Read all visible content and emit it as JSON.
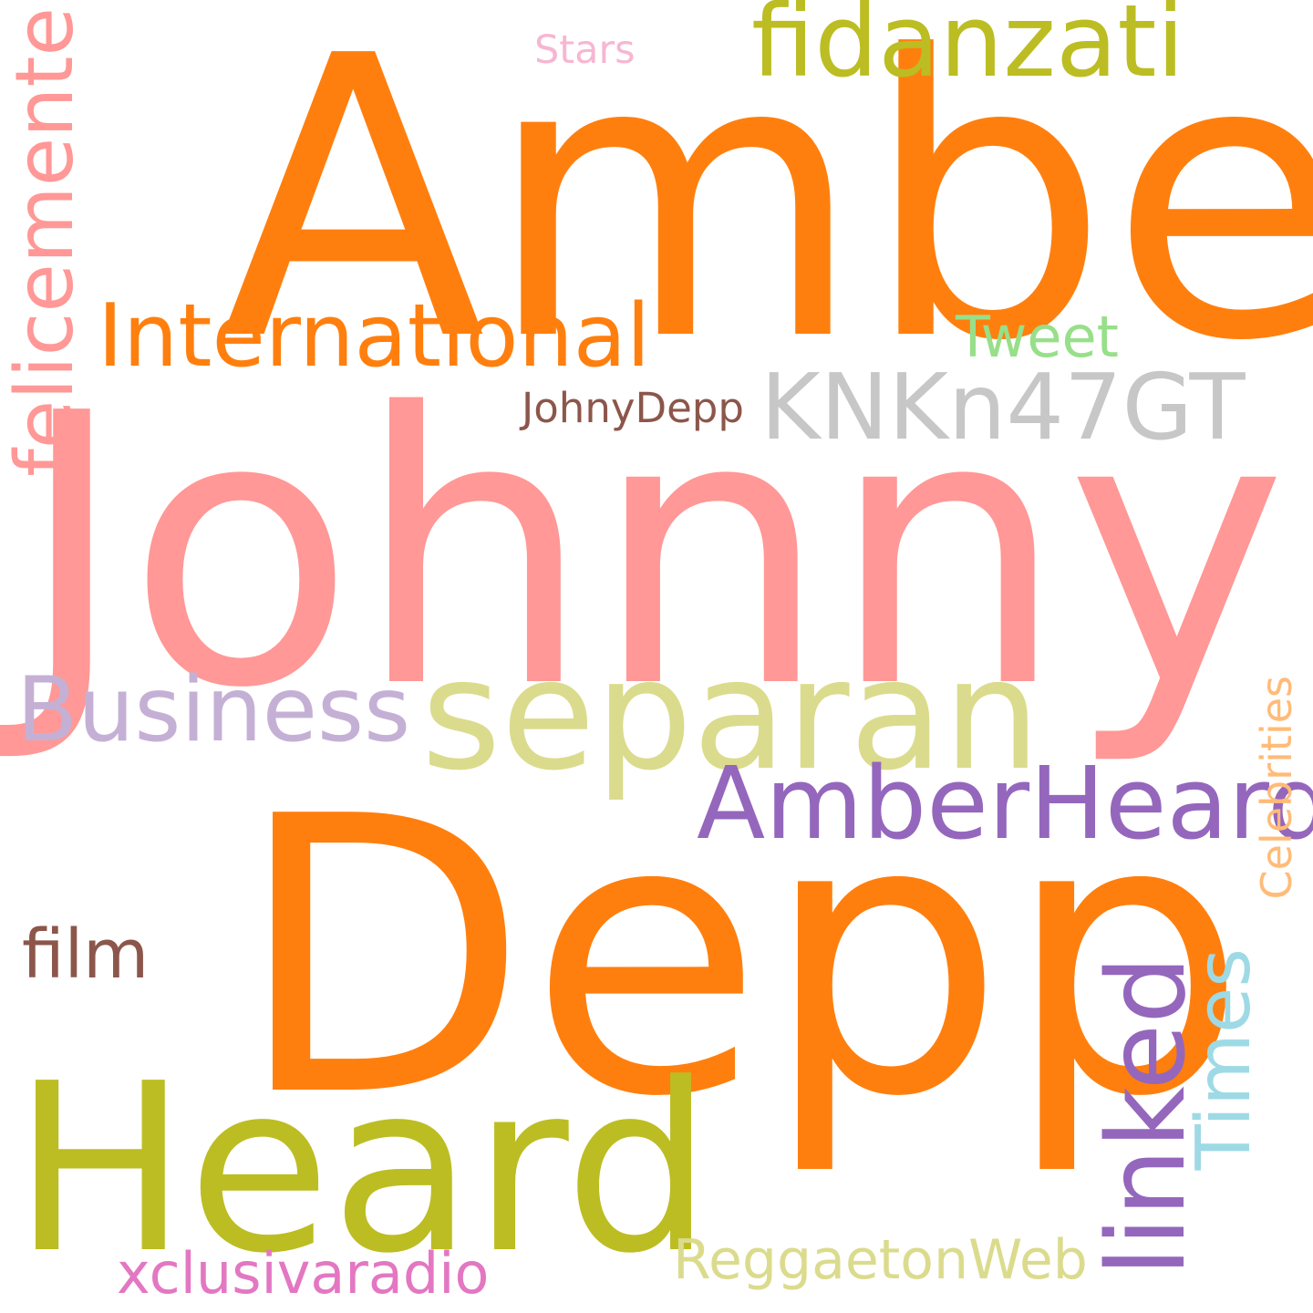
{
  "words": {
    "amber": {
      "text": "Amber",
      "color": "#ff7f0e"
    },
    "johnny": {
      "text": "Johnny",
      "color": "#ff9896"
    },
    "depp": {
      "text": "Depp",
      "color": "#ff7f0e"
    },
    "heard": {
      "text": "Heard",
      "color": "#bcbd22"
    },
    "separan": {
      "text": "separan",
      "color": "#dbdb8d"
    },
    "fidanzati": {
      "text": "fidanzati",
      "color": "#bcbd22"
    },
    "felicemente": {
      "text": "felicemente",
      "color": "#ff9896"
    },
    "international": {
      "text": "International",
      "color": "#ff7f0e"
    },
    "knkn47gt": {
      "text": "KNKn47GT",
      "color": "#c7c7c7"
    },
    "amberheard": {
      "text": "AmberHeard",
      "color": "#9467bd"
    },
    "business": {
      "text": "Business",
      "color": "#c5b0d5"
    },
    "linked": {
      "text": "linked",
      "color": "#9467bd"
    },
    "times": {
      "text": "Times",
      "color": "#9edae5"
    },
    "celebrities": {
      "text": "Celebrities",
      "color": "#ffbb78"
    },
    "tweet": {
      "text": "Tweet",
      "color": "#98df8a"
    },
    "johnydepp": {
      "text": "JohnyDepp",
      "color": "#8c564b"
    },
    "stars": {
      "text": "Stars",
      "color": "#f7b6d2"
    },
    "film": {
      "text": "film",
      "color": "#8c564b"
    },
    "reggaetonweb": {
      "text": "ReggaetonWeb",
      "color": "#dbdb8d"
    },
    "xclusivaradio": {
      "text": "xclusivaradio",
      "color": "#e377c2"
    }
  }
}
